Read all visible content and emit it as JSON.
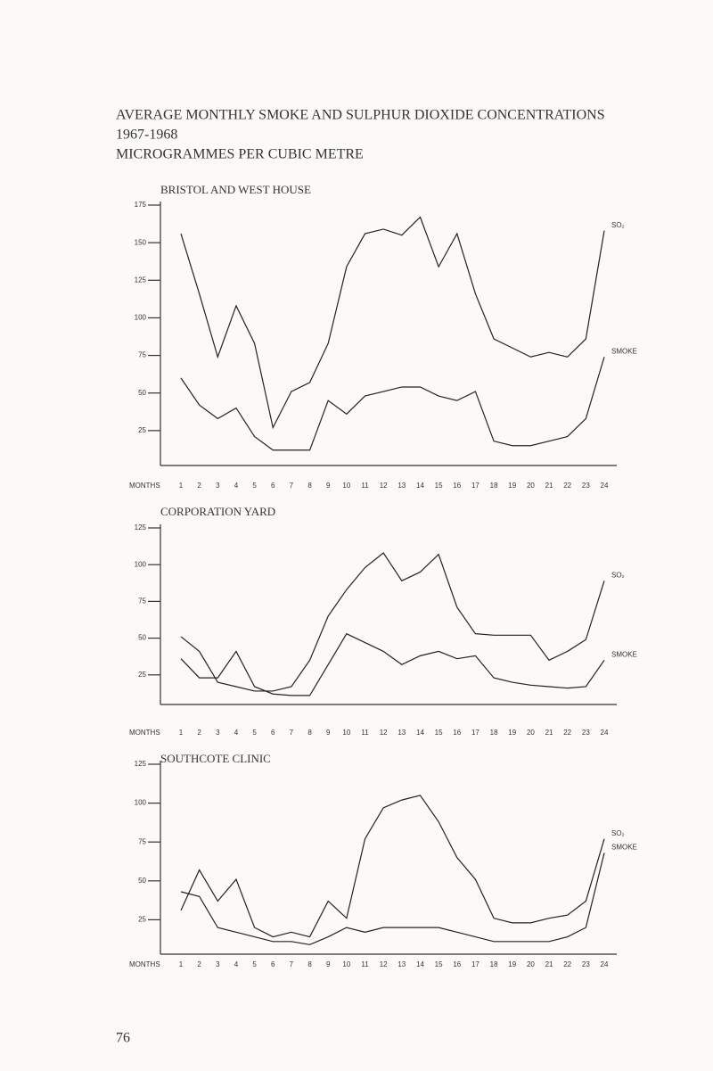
{
  "header": {
    "line1": "AVERAGE MONTHLY SMOKE AND SULPHUR DIOXIDE CONCENTRATIONS",
    "line2": "1967-1968",
    "line3": "MICROGRAMMES PER CUBIC METRE"
  },
  "page_number": "76",
  "chart_data": [
    {
      "type": "line",
      "title": "BRISTOL AND WEST HOUSE",
      "x_label": "MONTHS",
      "categories": [
        "1",
        "2",
        "3",
        "4",
        "5",
        "6",
        "7",
        "8",
        "9",
        "10",
        "11",
        "12",
        "13",
        "14",
        "15",
        "16",
        "17",
        "18",
        "19",
        "20",
        "21",
        "22",
        "23",
        "24"
      ],
      "ylim": [
        0,
        175
      ],
      "yticks": [
        25,
        50,
        75,
        100,
        125,
        150,
        175
      ],
      "series": [
        {
          "name": "SO₂",
          "color": "#222222",
          "values": [
            156,
            116,
            74,
            108,
            83,
            27,
            51,
            57,
            83,
            134,
            156,
            159,
            155,
            167,
            134,
            156,
            116,
            86,
            80,
            74,
            77,
            74,
            86,
            158
          ]
        },
        {
          "name": "SMOKE",
          "color": "#222222",
          "values": [
            60,
            42,
            33,
            40,
            21,
            12,
            12,
            12,
            45,
            36,
            48,
            51,
            54,
            54,
            48,
            45,
            51,
            18,
            15,
            15,
            18,
            21,
            33,
            74
          ]
        }
      ]
    },
    {
      "type": "line",
      "title": "CORPORATION YARD",
      "x_label": "MONTHS",
      "categories": [
        "1",
        "2",
        "3",
        "4",
        "5",
        "6",
        "7",
        "8",
        "9",
        "10",
        "11",
        "12",
        "13",
        "14",
        "15",
        "16",
        "17",
        "18",
        "19",
        "20",
        "21",
        "22",
        "23",
        "24"
      ],
      "ylim": [
        0,
        125
      ],
      "yticks": [
        25,
        50,
        75,
        100,
        125
      ],
      "series": [
        {
          "name": "SO₂",
          "color": "#222222",
          "values": [
            51,
            41,
            20,
            17,
            14,
            14,
            17,
            35,
            65,
            83,
            98,
            108,
            89,
            95,
            107,
            71,
            53,
            52,
            52,
            52,
            35,
            41,
            49,
            89
          ]
        },
        {
          "name": "SMOKE",
          "color": "#222222",
          "values": [
            36,
            23,
            23,
            41,
            17,
            12,
            11,
            11,
            32,
            53,
            47,
            41,
            32,
            38,
            41,
            36,
            38,
            23,
            20,
            18,
            17,
            16,
            17,
            35
          ]
        }
      ]
    },
    {
      "type": "line",
      "title": "SOUTHCOTE CLINIC",
      "x_label": "MONTHS",
      "categories": [
        "1",
        "2",
        "3",
        "4",
        "5",
        "6",
        "7",
        "8",
        "9",
        "10",
        "11",
        "12",
        "13",
        "14",
        "15",
        "16",
        "17",
        "18",
        "19",
        "20",
        "21",
        "22",
        "23",
        "24"
      ],
      "ylim": [
        0,
        125
      ],
      "yticks": [
        25,
        50,
        75,
        100,
        125
      ],
      "series": [
        {
          "name": "SO₂",
          "color": "#222222",
          "values": [
            31,
            57,
            37,
            51,
            20,
            14,
            17,
            14,
            37,
            26,
            77,
            97,
            102,
            105,
            88,
            65,
            51,
            26,
            23,
            23,
            26,
            28,
            37,
            77
          ]
        },
        {
          "name": "SMOKE",
          "color": "#222222",
          "values": [
            43,
            40,
            20,
            17,
            14,
            11,
            11,
            9,
            14,
            20,
            17,
            20,
            20,
            20,
            20,
            17,
            14,
            11,
            11,
            11,
            11,
            14,
            20,
            68
          ]
        }
      ]
    }
  ]
}
